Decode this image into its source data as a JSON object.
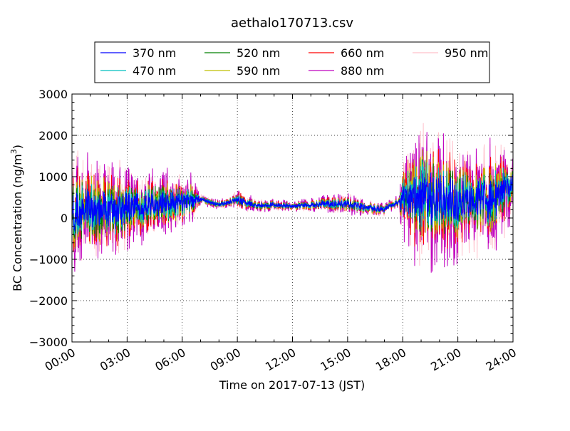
{
  "chart_data": {
    "type": "line",
    "title": "aethalo170713.csv",
    "xlabel": "Time on 2017-07-13 (JST)",
    "ylabel": "BC Concentration (ng/m",
    "ylabel_sup": "3",
    "ylabel_close": ")",
    "xlim": [
      0,
      24
    ],
    "ylim": [
      -3000,
      3000
    ],
    "x_ticks": [
      {
        "value": 0,
        "label": "00:00"
      },
      {
        "value": 3,
        "label": "03:00"
      },
      {
        "value": 6,
        "label": "06:00"
      },
      {
        "value": 9,
        "label": "09:00"
      },
      {
        "value": 12,
        "label": "12:00"
      },
      {
        "value": 15,
        "label": "15:00"
      },
      {
        "value": 18,
        "label": "18:00"
      },
      {
        "value": 21,
        "label": "21:00"
      },
      {
        "value": 24,
        "label": "24:00"
      }
    ],
    "y_ticks": [
      {
        "value": 3000,
        "label": "3000"
      },
      {
        "value": 2000,
        "label": "2000"
      },
      {
        "value": 1000,
        "label": "1000"
      },
      {
        "value": 0,
        "label": "0"
      },
      {
        "value": -1000,
        "label": "−1000"
      },
      {
        "value": -2000,
        "label": "−2000"
      },
      {
        "value": -3000,
        "label": "−3000"
      }
    ],
    "grid": true,
    "legend_position": "top-center",
    "series": [
      {
        "name": "370 nm",
        "color": "#0000ff",
        "amp": 0.35,
        "seed": 11
      },
      {
        "name": "470 nm",
        "color": "#00bfbf",
        "amp": 0.45,
        "seed": 23
      },
      {
        "name": "520 nm",
        "color": "#008000",
        "amp": 0.5,
        "seed": 37
      },
      {
        "name": "590 nm",
        "color": "#bfbf00",
        "amp": 0.6,
        "seed": 41
      },
      {
        "name": "660 nm",
        "color": "#ff0000",
        "amp": 0.7,
        "seed": 53
      },
      {
        "name": "880 nm",
        "color": "#bf00bf",
        "amp": 1.0,
        "seed": 67
      },
      {
        "name": "950 nm",
        "color": "#ffc0cb",
        "amp": 0.95,
        "seed": 79
      }
    ],
    "baseline": [
      [
        0,
        100
      ],
      [
        1,
        250
      ],
      [
        2,
        200
      ],
      [
        3,
        250
      ],
      [
        4,
        300
      ],
      [
        5,
        350
      ],
      [
        6,
        380
      ],
      [
        7,
        450
      ],
      [
        8,
        320
      ],
      [
        9,
        450
      ],
      [
        10,
        300
      ],
      [
        11,
        320
      ],
      [
        12,
        280
      ],
      [
        13,
        320
      ],
      [
        14,
        340
      ],
      [
        15,
        350
      ],
      [
        16,
        260
      ],
      [
        17,
        200
      ],
      [
        18,
        450
      ],
      [
        19,
        550
      ],
      [
        20,
        450
      ],
      [
        21,
        400
      ],
      [
        22,
        450
      ],
      [
        23,
        500
      ],
      [
        24,
        900
      ]
    ],
    "noise_envelope": [
      [
        0,
        1600
      ],
      [
        2.5,
        1400
      ],
      [
        3,
        1200
      ],
      [
        4,
        1000
      ],
      [
        5.5,
        900
      ],
      [
        6.5,
        700
      ],
      [
        7,
        150
      ],
      [
        8.5,
        150
      ],
      [
        9,
        300
      ],
      [
        10,
        200
      ],
      [
        12,
        150
      ],
      [
        13,
        200
      ],
      [
        14,
        250
      ],
      [
        15,
        300
      ],
      [
        16,
        250
      ],
      [
        17,
        200
      ],
      [
        17.8,
        200
      ],
      [
        18,
        1200
      ],
      [
        19,
        2100
      ],
      [
        20,
        1900
      ],
      [
        21,
        1700
      ],
      [
        22,
        1500
      ],
      [
        23,
        1600
      ],
      [
        24,
        1000
      ]
    ]
  }
}
